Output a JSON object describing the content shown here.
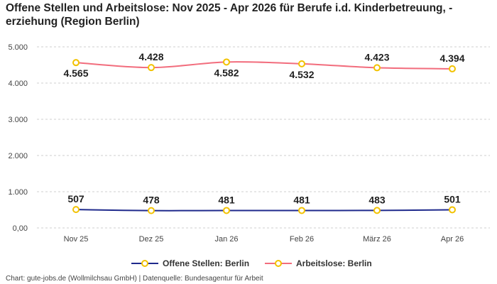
{
  "chart_data": {
    "type": "line",
    "title": "Offene Stellen und Arbeitslose: Nov 2025 - Apr 2026 für Berufe i.d. Kinderbetreuung, -erziehung (Region Berlin)",
    "categories": [
      "Nov 25",
      "Dez 25",
      "Jan 26",
      "Feb 26",
      "März 26",
      "Apr 26"
    ],
    "y_ticks": [
      "0,00",
      "1.000",
      "2.000",
      "3.000",
      "4.000",
      "5.000"
    ],
    "ylim": [
      0,
      5000
    ],
    "grid": true,
    "legend_position": "bottom",
    "series": [
      {
        "name": "Offene Stellen: Berlin",
        "values": [
          507,
          478,
          481,
          481,
          483,
          501
        ],
        "labels": [
          "507",
          "478",
          "481",
          "481",
          "483",
          "501"
        ],
        "color": "#1f2a8c",
        "marker_color": "#f2c200"
      },
      {
        "name": "Arbeitslose: Berlin",
        "values": [
          4565,
          4428,
          4582,
          4532,
          4423,
          4394
        ],
        "labels": [
          "4.565",
          "4.428",
          "4.582",
          "4.532",
          "4.423",
          "4.394"
        ],
        "color": "#f26d7d",
        "marker_color": "#f2c200"
      }
    ]
  },
  "credit": "Chart: gute-jobs.de (Wollmilchsau GmbH) | Datenquelle: Bundesagentur für Arbeit"
}
